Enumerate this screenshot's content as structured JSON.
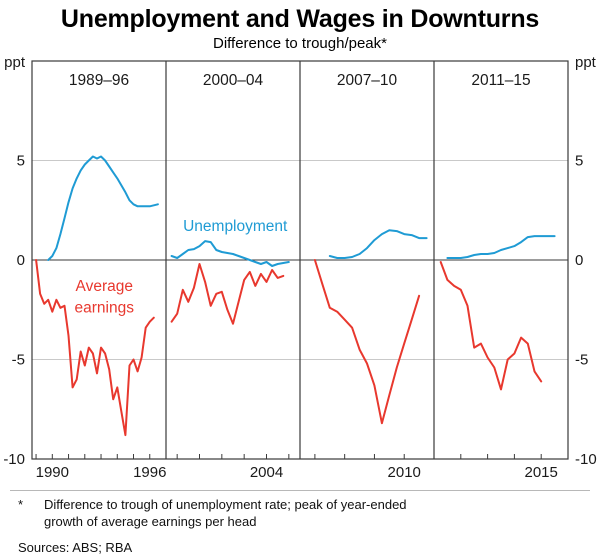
{
  "title": "Unemployment and Wages in Downturns",
  "subtitle": "Difference to trough/peak*",
  "footnote": {
    "marker": "*",
    "lines": [
      "Difference to trough of unemployment rate; peak of year-ended",
      "growth of average earnings per head"
    ]
  },
  "sources": "Sources:  ABS; RBA",
  "chart_data": {
    "type": "line",
    "unit_label": "ppt",
    "ylim": [
      -10,
      10
    ],
    "yticks": [
      5,
      0,
      -5,
      -10
    ],
    "legend_position": "in-plot annotations",
    "grid": "horizontal only",
    "colors": {
      "unemployment": "#1f9bd4",
      "earnings": "#e8382e",
      "grid": "#c9c9c9",
      "zero_line": "#3a3a3a",
      "frame": "#3a3a3a",
      "text": "#1a1a1a"
    },
    "series_names": [
      "Unemployment",
      "Average earnings"
    ],
    "panels": [
      {
        "label": "1989–96",
        "xlim": [
          1988.75,
          1997
        ],
        "xticklabels": [
          {
            "year": 1990,
            "text": "1990"
          },
          {
            "year": 1996,
            "text": "1996"
          }
        ],
        "series": [
          {
            "name": "Unemployment",
            "color_key": "unemployment",
            "x": [
              1989.75,
              1990,
              1990.25,
              1990.5,
              1990.75,
              1991,
              1991.25,
              1991.5,
              1991.75,
              1992,
              1992.25,
              1992.5,
              1992.75,
              1993,
              1993.25,
              1993.5,
              1993.75,
              1994,
              1994.5,
              1994.75,
              1995,
              1995.25,
              1995.5,
              1996,
              1996.5
            ],
            "y": [
              0,
              0.2,
              0.6,
              1.3,
              2.1,
              2.9,
              3.6,
              4.1,
              4.5,
              4.8,
              5.0,
              5.2,
              5.1,
              5.2,
              5.0,
              4.7,
              4.4,
              4.1,
              3.4,
              3.0,
              2.8,
              2.7,
              2.7,
              2.7,
              2.8
            ]
          },
          {
            "name": "Average earnings",
            "color_key": "earnings",
            "x": [
              1989,
              1989.25,
              1989.5,
              1989.75,
              1990,
              1990.25,
              1990.5,
              1990.75,
              1991,
              1991.25,
              1991.5,
              1991.75,
              1992,
              1992.25,
              1992.5,
              1992.75,
              1993,
              1993.25,
              1993.5,
              1993.75,
              1994,
              1994.25,
              1994.5,
              1994.75,
              1995,
              1995.25,
              1995.5,
              1995.75,
              1996,
              1996.25
            ],
            "y": [
              0,
              -1.7,
              -2.2,
              -2.0,
              -2.6,
              -2.0,
              -2.4,
              -2.3,
              -3.8,
              -6.4,
              -6.0,
              -4.6,
              -5.3,
              -4.4,
              -4.7,
              -5.7,
              -4.4,
              -4.7,
              -5.5,
              -7.0,
              -6.4,
              -7.6,
              -8.8,
              -5.3,
              -5.0,
              -5.6,
              -4.9,
              -3.4,
              -3.1,
              -2.9
            ]
          }
        ]
      },
      {
        "label": "2000–04",
        "xlim": [
          1999.5,
          2005.5
        ],
        "xticklabels": [
          {
            "year": 2004,
            "text": "2004"
          }
        ],
        "series": [
          {
            "name": "Unemployment",
            "color_key": "unemployment",
            "x": [
              1999.75,
              2000,
              2000.25,
              2000.5,
              2000.75,
              2001,
              2001.25,
              2001.5,
              2001.75,
              2002,
              2002.25,
              2002.5,
              2002.75,
              2003,
              2003.25,
              2003.5,
              2003.75,
              2004,
              2004.25,
              2004.5,
              2004.75,
              2005
            ],
            "y": [
              0.2,
              0.1,
              0.3,
              0.5,
              0.55,
              0.7,
              0.95,
              0.9,
              0.5,
              0.4,
              0.35,
              0.3,
              0.2,
              0.1,
              0,
              -0.1,
              -0.2,
              -0.1,
              -0.3,
              -0.2,
              -0.15,
              -0.1
            ]
          },
          {
            "name": "Average earnings",
            "color_key": "earnings",
            "x": [
              1999.75,
              2000,
              2000.25,
              2000.5,
              2000.75,
              2001,
              2001.25,
              2001.5,
              2001.75,
              2002,
              2002.25,
              2002.5,
              2002.75,
              2003,
              2003.25,
              2003.5,
              2003.75,
              2004,
              2004.25,
              2004.5,
              2004.75
            ],
            "y": [
              -3.1,
              -2.7,
              -1.5,
              -2.1,
              -1.4,
              -0.2,
              -1.1,
              -2.3,
              -1.7,
              -1.6,
              -2.5,
              -3.2,
              -2.1,
              -1.0,
              -0.6,
              -1.3,
              -0.7,
              -1.1,
              -0.5,
              -0.9,
              -0.8
            ]
          }
        ]
      },
      {
        "label": "2007–10",
        "xlim": [
          2006.5,
          2011
        ],
        "xticklabels": [
          {
            "year": 2010,
            "text": "2010"
          }
        ],
        "series": [
          {
            "name": "Unemployment",
            "color_key": "unemployment",
            "x": [
              2007.5,
              2007.75,
              2008,
              2008.25,
              2008.5,
              2008.75,
              2009,
              2009.25,
              2009.5,
              2009.75,
              2010,
              2010.25,
              2010.5,
              2010.75
            ],
            "y": [
              0.2,
              0.1,
              0.1,
              0.15,
              0.3,
              0.6,
              1.0,
              1.3,
              1.5,
              1.45,
              1.3,
              1.25,
              1.1,
              1.1
            ]
          },
          {
            "name": "Average earnings",
            "color_key": "earnings",
            "x": [
              2007,
              2007.25,
              2007.5,
              2007.75,
              2008,
              2008.25,
              2008.5,
              2008.75,
              2009,
              2009.25,
              2009.5,
              2009.75,
              2010,
              2010.25,
              2010.5
            ],
            "y": [
              0,
              -1.2,
              -2.4,
              -2.6,
              -3.0,
              -3.4,
              -4.5,
              -5.2,
              -6.3,
              -8.2,
              -6.8,
              -5.4,
              -4.2,
              -3.0,
              -1.8
            ]
          }
        ]
      },
      {
        "label": "2011–15",
        "xlim": [
          2011,
          2016
        ],
        "xticklabels": [
          {
            "year": 2015,
            "text": "2015"
          }
        ],
        "series": [
          {
            "name": "Unemployment",
            "color_key": "unemployment",
            "x": [
              2011.5,
              2011.75,
              2012,
              2012.25,
              2012.5,
              2012.75,
              2013,
              2013.25,
              2013.5,
              2013.75,
              2014,
              2014.25,
              2014.5,
              2014.75,
              2015,
              2015.25,
              2015.5
            ],
            "y": [
              0.1,
              0.1,
              0.1,
              0.15,
              0.25,
              0.3,
              0.3,
              0.35,
              0.5,
              0.6,
              0.7,
              0.9,
              1.15,
              1.2,
              1.2,
              1.2,
              1.2
            ]
          },
          {
            "name": "Average earnings",
            "color_key": "earnings",
            "x": [
              2011.25,
              2011.5,
              2011.75,
              2012,
              2012.25,
              2012.5,
              2012.75,
              2013,
              2013.25,
              2013.5,
              2013.75,
              2014,
              2014.25,
              2014.5,
              2014.75,
              2015
            ],
            "y": [
              -0.1,
              -1.0,
              -1.3,
              -1.5,
              -2.3,
              -4.4,
              -4.2,
              -4.9,
              -5.4,
              -6.5,
              -5.0,
              -4.7,
              -3.9,
              -4.2,
              -5.6,
              -6.1
            ]
          }
        ]
      }
    ],
    "annotations": [
      {
        "text": "Unemployment",
        "panel": 1,
        "x": 2002.6,
        "y": 1.45,
        "color_key": "unemployment",
        "anchor": "middle"
      },
      {
        "text": "Average",
        "panel": 0,
        "x": 1993.2,
        "y": -1.55,
        "color_key": "earnings",
        "anchor": "middle"
      },
      {
        "text": "earnings",
        "panel": 0,
        "x": 1993.2,
        "y": -2.65,
        "color_key": "earnings",
        "anchor": "middle"
      }
    ]
  }
}
